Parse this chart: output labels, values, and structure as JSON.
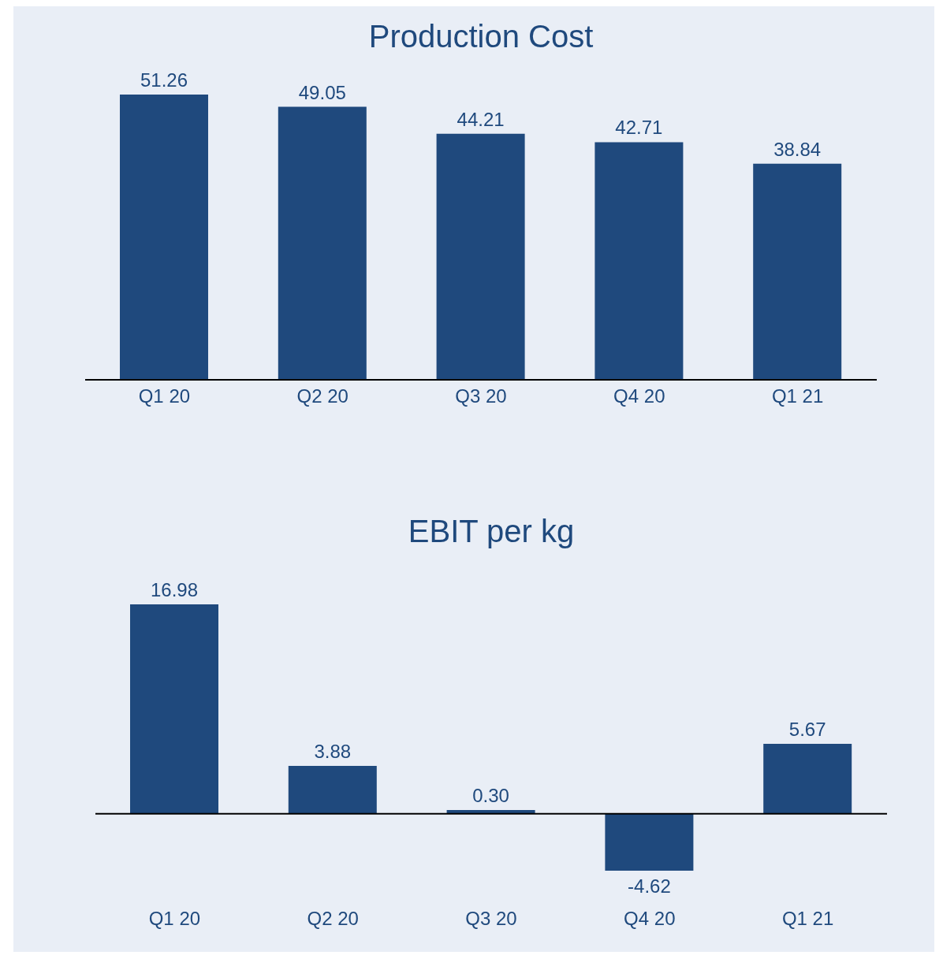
{
  "chart_data": [
    {
      "type": "bar",
      "title": "Production Cost",
      "categories": [
        "Q1 20",
        "Q2 20",
        "Q3 20",
        "Q4 20",
        "Q1 21"
      ],
      "values": [
        51.26,
        49.05,
        44.21,
        42.71,
        38.84
      ],
      "value_labels": [
        "51.26",
        "49.05",
        "44.21",
        "42.71",
        "38.84"
      ],
      "color": "#1f497d"
    },
    {
      "type": "bar",
      "title": "EBIT per kg",
      "categories": [
        "Q1 20",
        "Q2 20",
        "Q3 20",
        "Q4 20",
        "Q1 21"
      ],
      "values": [
        16.98,
        3.88,
        0.3,
        -4.62,
        5.67
      ],
      "value_labels": [
        "16.98",
        "3.88",
        "0.30",
        "-4.62",
        "5.67"
      ],
      "color": "#1f497d"
    }
  ]
}
